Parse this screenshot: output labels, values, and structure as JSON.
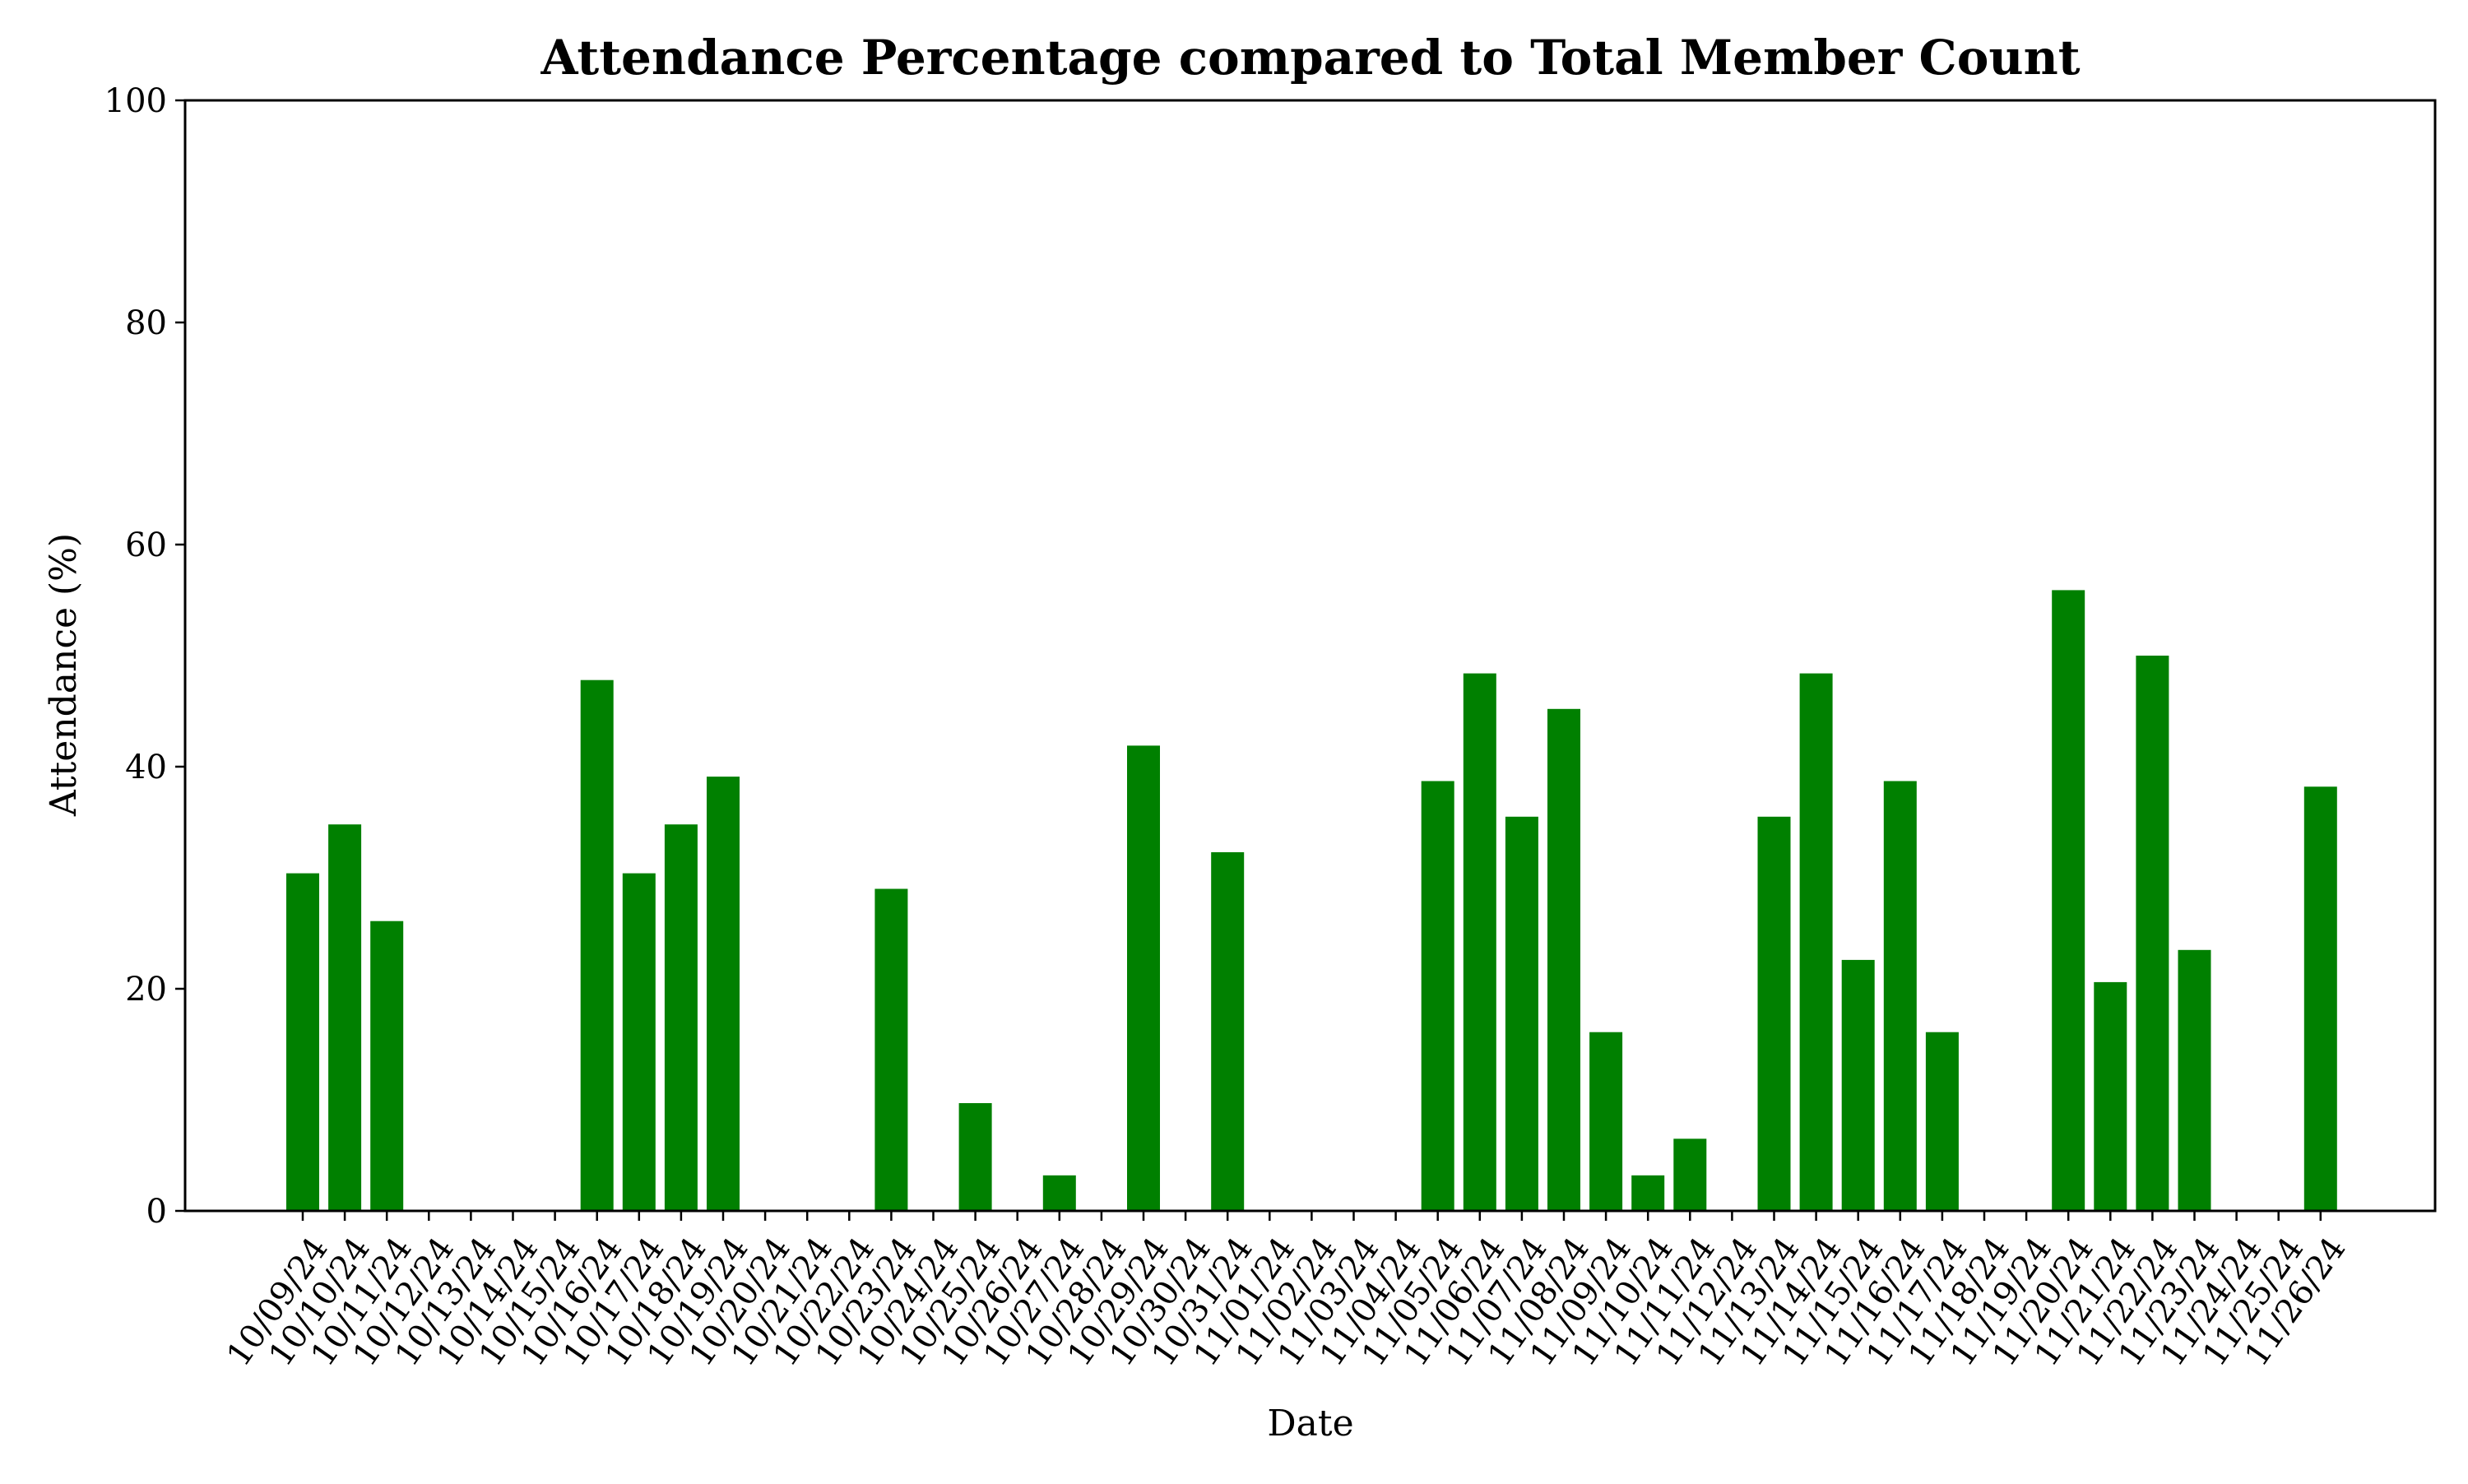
{
  "chart_data": {
    "type": "bar",
    "title": "Attendance Percentage compared to Total Member Count",
    "xlabel": "Date",
    "ylabel": "Attendance (%)",
    "ylim": [
      0,
      100
    ],
    "yticks": [
      0,
      20,
      40,
      60,
      80,
      100
    ],
    "grid": false,
    "legend": "none",
    "bar_color": "#008000",
    "categories": [
      "10/09/24",
      "10/10/24",
      "10/11/24",
      "10/12/24",
      "10/13/24",
      "10/14/24",
      "10/15/24",
      "10/16/24",
      "10/17/24",
      "10/18/24",
      "10/19/24",
      "10/20/24",
      "10/21/24",
      "10/22/24",
      "10/23/24",
      "10/24/24",
      "10/25/24",
      "10/26/24",
      "10/27/24",
      "10/28/24",
      "10/29/24",
      "10/30/24",
      "10/31/24",
      "11/01/24",
      "11/02/24",
      "11/03/24",
      "11/04/24",
      "11/05/24",
      "11/06/24",
      "11/07/24",
      "11/08/24",
      "11/09/24",
      "11/10/24",
      "11/11/24",
      "11/12/24",
      "11/13/24",
      "11/14/24",
      "11/15/24",
      "11/16/24",
      "11/17/24",
      "11/18/24",
      "11/19/24",
      "11/20/24",
      "11/21/24",
      "11/22/24",
      "11/23/24",
      "11/24/24",
      "11/25/24",
      "11/26/24"
    ],
    "values": [
      30.4,
      34.8,
      26.1,
      0,
      0,
      0,
      0,
      47.8,
      30.4,
      34.8,
      39.1,
      0,
      0,
      0,
      29.0,
      0,
      9.7,
      0,
      3.2,
      0,
      41.9,
      0,
      32.3,
      0,
      0,
      0,
      0,
      38.7,
      48.4,
      35.5,
      45.2,
      16.1,
      3.2,
      6.5,
      0,
      35.5,
      48.4,
      22.6,
      38.7,
      16.1,
      0,
      0,
      55.9,
      20.6,
      50.0,
      23.5,
      0,
      0,
      38.2
    ]
  }
}
